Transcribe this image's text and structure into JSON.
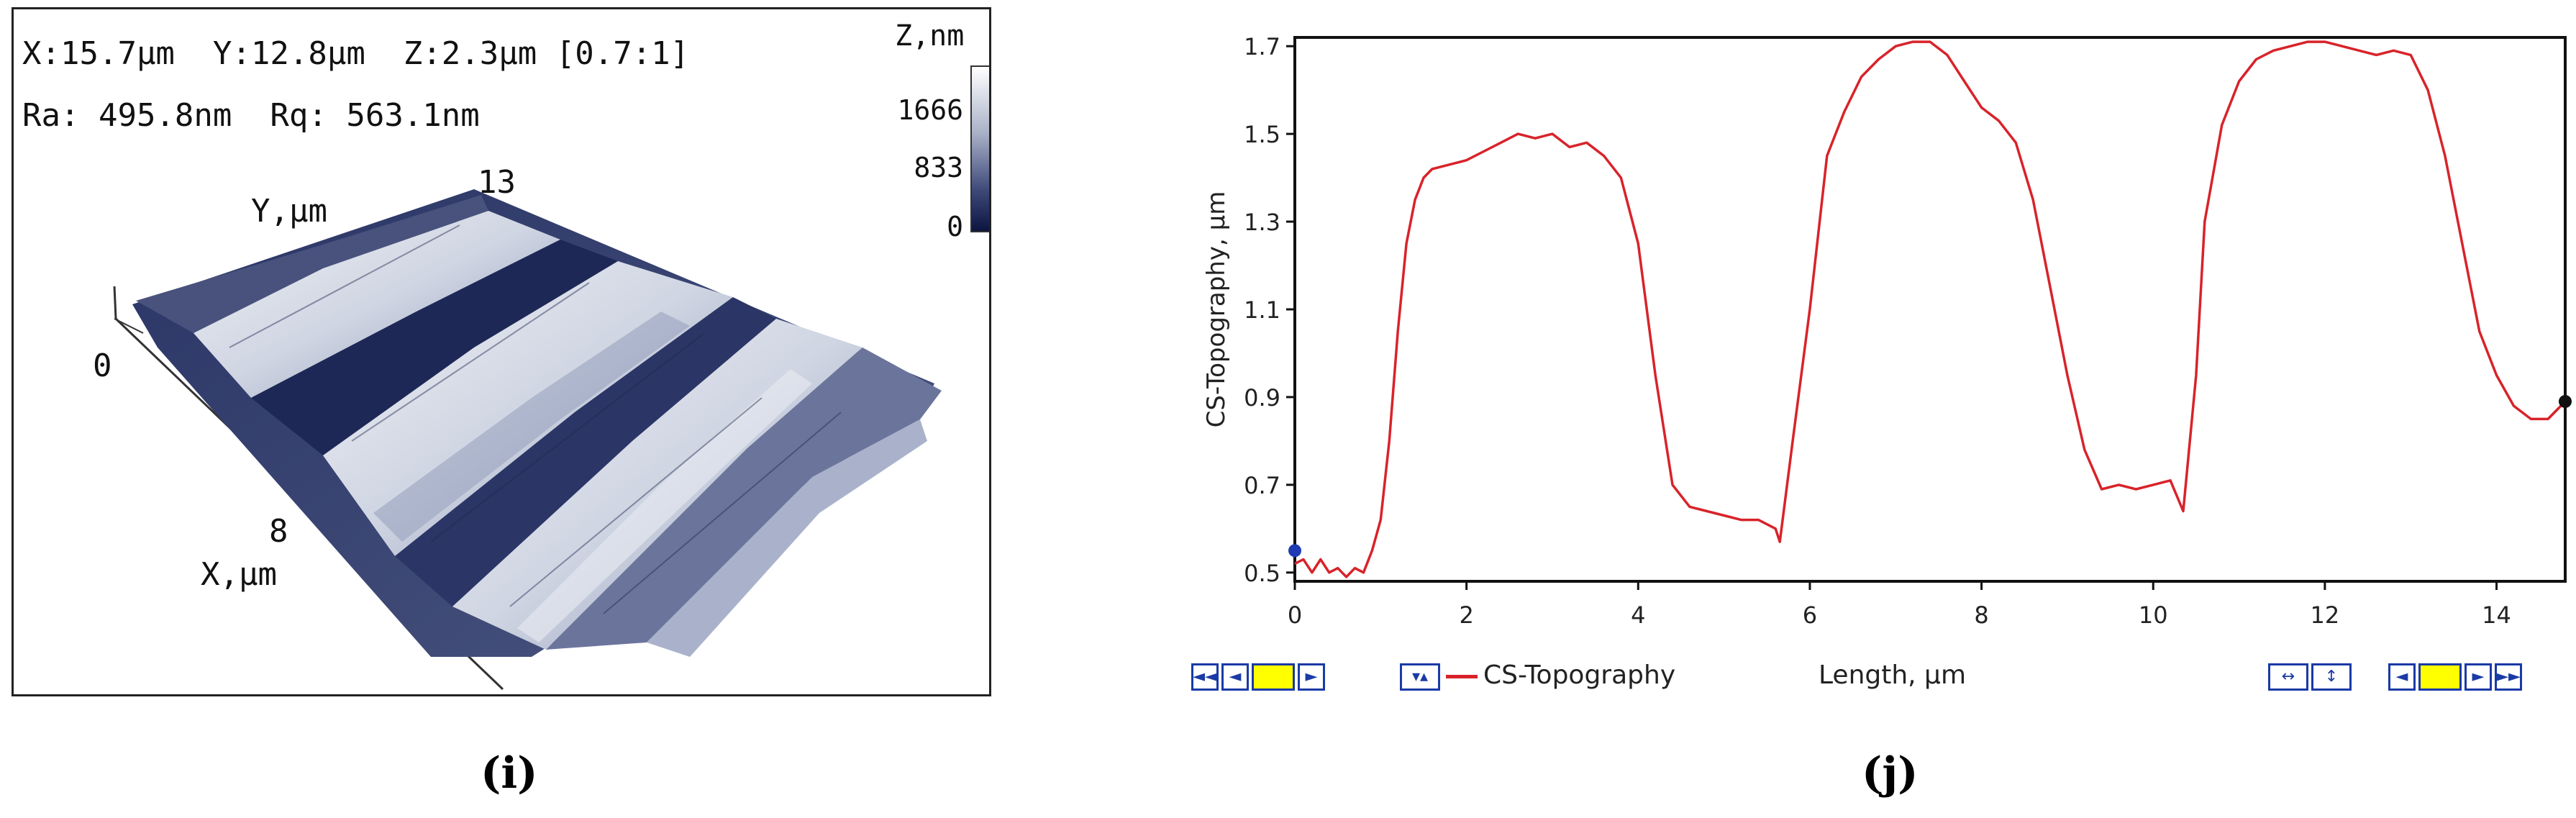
{
  "left_panel": {
    "info_xyz": "X:15.7μm  Y:12.8μm  Z:2.3μm [0.7:1]",
    "info_roughness": "Ra: 495.8nm  Rq: 563.1nm",
    "color_scale": {
      "title": "Z,nm",
      "ticks": [
        "1666",
        "833",
        "0"
      ]
    },
    "axes": {
      "y_label": "Y,μm",
      "y_max": "13",
      "x_label": "X,μm",
      "x_mid": "8",
      "origin": "0"
    }
  },
  "right_panel": {
    "toolbar_left": [
      "◄◄",
      "◄",
      "",
      "►"
    ],
    "toolbar_curve_toggle": "▾▴",
    "legend_label": "CS-Topography",
    "x_axis_label": "Length, μm",
    "toolbar_right_zoom": [
      "↔",
      "↕"
    ],
    "toolbar_right_nav": [
      "◄",
      "",
      "►",
      "►►"
    ],
    "line_color": "#d8232a",
    "marker_start_color": "#1f3bb3",
    "marker_end_color": "#111111"
  },
  "chart_data": {
    "type": "line",
    "title": "",
    "xlabel": "Length, μm",
    "ylabel": "CS-Topography, μm",
    "xlim": [
      0,
      14.8
    ],
    "ylim": [
      0.48,
      1.72
    ],
    "xticks": [
      0,
      2,
      4,
      6,
      8,
      10,
      12,
      14
    ],
    "yticks": [
      0.5,
      0.7,
      0.9,
      1.1,
      1.3,
      1.5,
      1.7
    ],
    "legend": [
      "CS-Topography"
    ],
    "series": [
      {
        "name": "CS-Topography",
        "x": [
          0,
          0.1,
          0.2,
          0.3,
          0.4,
          0.5,
          0.6,
          0.7,
          0.8,
          0.9,
          1.0,
          1.1,
          1.2,
          1.3,
          1.4,
          1.5,
          1.6,
          1.8,
          2.0,
          2.2,
          2.4,
          2.6,
          2.8,
          3.0,
          3.2,
          3.4,
          3.6,
          3.8,
          4.0,
          4.2,
          4.4,
          4.6,
          4.8,
          5.0,
          5.2,
          5.4,
          5.6,
          5.65,
          5.8,
          6.0,
          6.2,
          6.4,
          6.6,
          6.8,
          7.0,
          7.2,
          7.4,
          7.6,
          7.8,
          8.0,
          8.2,
          8.4,
          8.6,
          8.8,
          9.0,
          9.2,
          9.4,
          9.6,
          9.8,
          10.0,
          10.2,
          10.35,
          10.5,
          10.6,
          10.8,
          11.0,
          11.2,
          11.4,
          11.6,
          11.8,
          12.0,
          12.2,
          12.4,
          12.6,
          12.8,
          13.0,
          13.2,
          13.4,
          13.6,
          13.8,
          14.0,
          14.2,
          14.4,
          14.6,
          14.8
        ],
        "y": [
          0.52,
          0.53,
          0.5,
          0.53,
          0.5,
          0.51,
          0.49,
          0.51,
          0.5,
          0.55,
          0.62,
          0.8,
          1.05,
          1.25,
          1.35,
          1.4,
          1.42,
          1.43,
          1.44,
          1.46,
          1.48,
          1.5,
          1.49,
          1.5,
          1.47,
          1.48,
          1.45,
          1.4,
          1.25,
          0.95,
          0.7,
          0.65,
          0.64,
          0.63,
          0.62,
          0.62,
          0.6,
          0.57,
          0.8,
          1.1,
          1.45,
          1.55,
          1.63,
          1.67,
          1.7,
          1.71,
          1.71,
          1.68,
          1.62,
          1.56,
          1.53,
          1.48,
          1.35,
          1.15,
          0.95,
          0.78,
          0.69,
          0.7,
          0.69,
          0.7,
          0.71,
          0.64,
          0.95,
          1.3,
          1.52,
          1.62,
          1.67,
          1.69,
          1.7,
          1.71,
          1.71,
          1.7,
          1.69,
          1.68,
          1.69,
          1.68,
          1.6,
          1.45,
          1.25,
          1.05,
          0.95,
          0.88,
          0.85,
          0.85,
          0.89
        ]
      }
    ]
  },
  "captions": {
    "left": "(i)",
    "right": "(j)"
  }
}
